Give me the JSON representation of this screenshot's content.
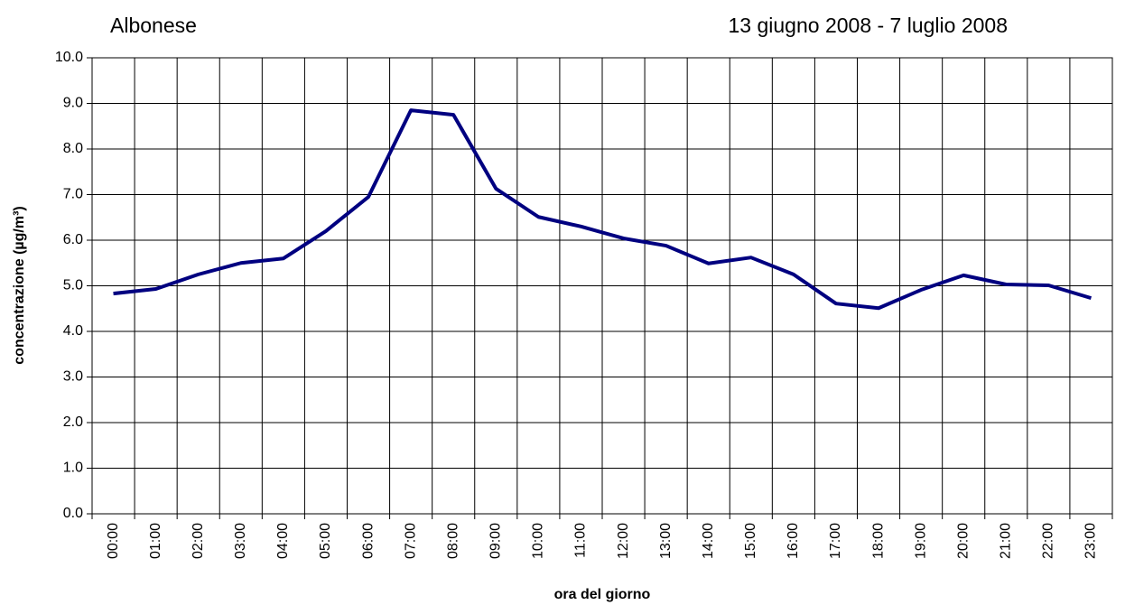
{
  "chart_data": {
    "type": "line",
    "title": "Albonese",
    "subtitle": "13 giugno 2008 - 7 luglio 2008",
    "x_label": "ora del giorno",
    "y_label": "concentrazione (µg/m³)",
    "categories": [
      "00:00",
      "01:00",
      "02:00",
      "03:00",
      "04:00",
      "05:00",
      "06:00",
      "07:00",
      "08:00",
      "09:00",
      "10:00",
      "11:00",
      "12:00",
      "13:00",
      "14:00",
      "15:00",
      "16:00",
      "17:00",
      "18:00",
      "19:00",
      "20:00",
      "21:00",
      "22:00",
      "23:00"
    ],
    "series": [
      {
        "color": "#000080",
        "values": [
          4.83,
          4.93,
          5.25,
          5.5,
          5.6,
          6.2,
          6.95,
          8.85,
          8.75,
          7.13,
          6.51,
          6.3,
          6.04,
          5.88,
          5.49,
          5.62,
          5.25,
          4.61,
          4.51,
          4.91,
          5.23,
          5.03,
          5.01,
          4.73
        ]
      }
    ],
    "ylim": [
      0,
      10
    ],
    "yticks": [
      {
        "value": 0,
        "label": "0.0"
      },
      {
        "value": 1,
        "label": "1.0"
      },
      {
        "value": 2,
        "label": "2.0"
      },
      {
        "value": 3,
        "label": "3.0"
      },
      {
        "value": 4,
        "label": "4.0"
      },
      {
        "value": 5,
        "label": "5.0"
      },
      {
        "value": 6,
        "label": "6.0"
      },
      {
        "value": 7,
        "label": "7.0"
      },
      {
        "value": 8,
        "label": "8.0"
      },
      {
        "value": 9,
        "label": "9.0"
      },
      {
        "value": 10,
        "label": "10.0"
      }
    ],
    "grid": true
  }
}
